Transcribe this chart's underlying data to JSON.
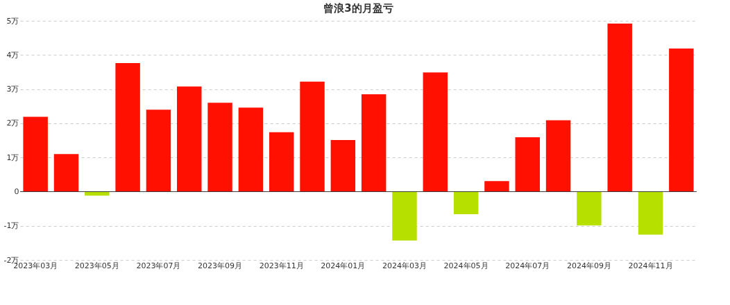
{
  "chart_data": {
    "type": "bar",
    "title": "曾浪3的月盈亏",
    "categories": [
      "2023年03月",
      null,
      "2023年05月",
      null,
      "2023年07月",
      null,
      "2023年09月",
      null,
      "2023年11月",
      null,
      "2024年01月",
      null,
      "2024年03月",
      null,
      "2024年05月",
      null,
      "2024年07月",
      null,
      "2024年09月",
      null,
      "2024年11月",
      null
    ],
    "values": [
      2.19,
      1.1,
      -0.12,
      3.76,
      2.4,
      3.08,
      2.6,
      2.46,
      1.74,
      3.22,
      1.51,
      2.85,
      -1.43,
      3.49,
      -0.66,
      0.31,
      1.59,
      2.09,
      -0.99,
      4.92,
      -1.26,
      4.19
    ],
    "colors": [
      "#ff1000",
      "#ff1000",
      "#b5e000",
      "#ff1000",
      "#ff1000",
      "#ff1000",
      "#ff1000",
      "#ff1000",
      "#ff1000",
      "#ff1000",
      "#ff1000",
      "#ff1000",
      "#b5e000",
      "#ff1000",
      "#b5e000",
      "#ff1000",
      "#ff1000",
      "#ff1000",
      "#b5e000",
      "#ff1000",
      "#b5e000",
      "#ff1000"
    ],
    "ylim": [
      -2,
      5
    ],
    "yticks": [
      {
        "value": -2,
        "label": "-2万"
      },
      {
        "value": -1,
        "label": "-1万"
      },
      {
        "value": 0,
        "label": "0"
      },
      {
        "value": 1,
        "label": "1万"
      },
      {
        "value": 2,
        "label": "2万"
      },
      {
        "value": 3,
        "label": "3万"
      },
      {
        "value": 4,
        "label": "4万"
      },
      {
        "value": 5,
        "label": "5万"
      }
    ],
    "grid": "y"
  }
}
